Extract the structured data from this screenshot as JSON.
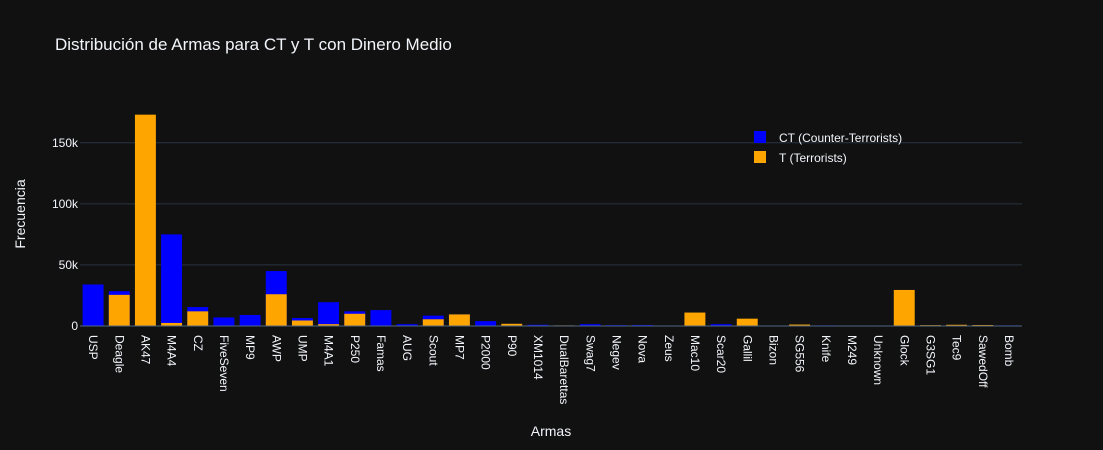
{
  "chart_data": {
    "type": "bar",
    "barmode": "overlay",
    "title": "Distribución de Armas para CT y T con Dinero Medio",
    "xlabel": "Armas",
    "ylabel": "Frecuencia",
    "ylim": [
      0,
      185000
    ],
    "yticks": [
      0,
      50000,
      100000,
      150000
    ],
    "yticklabels": [
      "0",
      "50k",
      "100k",
      "150k"
    ],
    "grid": true,
    "legend_position": "top-right",
    "colors": {
      "background": "#111111",
      "ct": "#0000ff",
      "t": "#ffa500",
      "grid": "#283442",
      "text": "#f2f5fa"
    },
    "categories": [
      "USP",
      "Deagle",
      "AK47",
      "M4A4",
      "CZ",
      "FiveSeven",
      "MP9",
      "AWP",
      "UMP",
      "M4A1",
      "P250",
      "Famas",
      "AUG",
      "Scout",
      "MP7",
      "P2000",
      "P90",
      "XM1014",
      "DualBarettas",
      "Swag7",
      "Negev",
      "Nova",
      "Zeus",
      "Mac10",
      "Scar20",
      "Gallil",
      "Bizon",
      "SG556",
      "Knife",
      "M249",
      "Unknown",
      "Glock",
      "G3SG1",
      "Tec9",
      "SawedOff",
      "Bomb"
    ],
    "series": [
      {
        "name": "CT (Counter-Terrorists)",
        "color": "#0000ff",
        "values": [
          34000,
          28500,
          0,
          75000,
          15500,
          7000,
          9000,
          45000,
          6500,
          19500,
          12000,
          13000,
          1500,
          8500,
          9500,
          4000,
          500,
          1000,
          200,
          1500,
          700,
          800,
          300,
          0,
          1500,
          0,
          200,
          300,
          500,
          200,
          100,
          0,
          300,
          0,
          0,
          500
        ]
      },
      {
        "name": "T (Terrorists)",
        "color": "#ffa500",
        "values": [
          0,
          25500,
          173000,
          2500,
          12000,
          0,
          0,
          26000,
          4500,
          1500,
          10000,
          0,
          0,
          5500,
          9500,
          0,
          1800,
          0,
          500,
          0,
          0,
          0,
          0,
          11000,
          0,
          6000,
          0,
          1200,
          0,
          0,
          0,
          29500,
          700,
          1000,
          800,
          0
        ]
      }
    ]
  }
}
